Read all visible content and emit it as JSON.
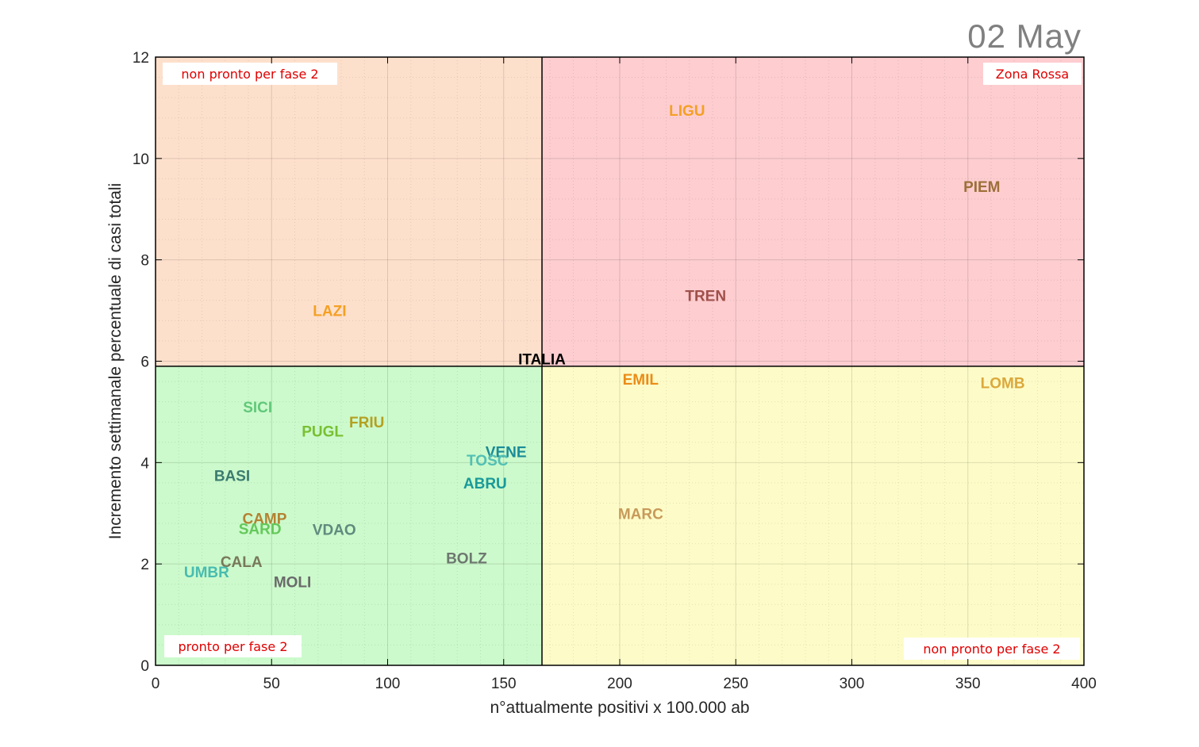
{
  "date_label": "02 May",
  "chart_data": {
    "type": "scatter",
    "xlabel": "n°attualmente positivi x 100.000 ab",
    "ylabel": "Incremento settimanale percentuale di casi totali",
    "xlim": [
      0,
      400
    ],
    "ylim": [
      0,
      12
    ],
    "xticks": [
      0,
      50,
      100,
      150,
      200,
      250,
      300,
      350,
      400
    ],
    "yticks": [
      0,
      2,
      4,
      6,
      8,
      10,
      12
    ],
    "grid": true,
    "thresholds": {
      "x": 166.5,
      "y": 5.9
    },
    "quadrants": [
      {
        "label": "non pronto per fase 2",
        "position": "top-left",
        "color": "#fde0cc"
      },
      {
        "label": "Zona Rossa",
        "position": "top-right",
        "color": "#fdcdd0"
      },
      {
        "label": "pronto per fase 2",
        "position": "bottom-left",
        "color": "#ccfacc"
      },
      {
        "label": "non pronto per fase 2",
        "position": "bottom-right",
        "color": "#fdfcc8"
      }
    ],
    "points": [
      {
        "label": "ITALIA",
        "x": 166.5,
        "y": 6.05,
        "color": "#000000"
      },
      {
        "label": "LIGU",
        "x": 229,
        "y": 10.95,
        "color": "#f5a024"
      },
      {
        "label": "PIEM",
        "x": 356,
        "y": 9.45,
        "color": "#9c7038"
      },
      {
        "label": "TREN",
        "x": 237,
        "y": 7.3,
        "color": "#a0504a"
      },
      {
        "label": "LAZI",
        "x": 75,
        "y": 7.0,
        "color": "#f5a024"
      },
      {
        "label": "EMIL",
        "x": 209,
        "y": 5.65,
        "color": "#ea8c18"
      },
      {
        "label": "LOMB",
        "x": 365,
        "y": 5.58,
        "color": "#dca83c"
      },
      {
        "label": "SICI",
        "x": 44,
        "y": 5.1,
        "color": "#62c87a"
      },
      {
        "label": "FRIU",
        "x": 91,
        "y": 4.8,
        "color": "#b4a020"
      },
      {
        "label": "PUGL",
        "x": 72,
        "y": 4.62,
        "color": "#78c032"
      },
      {
        "label": "VENE",
        "x": 151,
        "y": 4.22,
        "color": "#1a8c98"
      },
      {
        "label": "TOSC",
        "x": 143,
        "y": 4.05,
        "color": "#52c0b4"
      },
      {
        "label": "ABRU",
        "x": 142,
        "y": 3.6,
        "color": "#189a9a"
      },
      {
        "label": "BASI",
        "x": 33,
        "y": 3.75,
        "color": "#3c7c70"
      },
      {
        "label": "CAMP",
        "x": 47,
        "y": 2.9,
        "color": "#b48232"
      },
      {
        "label": "SARD",
        "x": 45,
        "y": 2.7,
        "color": "#64c85a"
      },
      {
        "label": "VDAO",
        "x": 77,
        "y": 2.68,
        "color": "#608a7e"
      },
      {
        "label": "BOLZ",
        "x": 134,
        "y": 2.12,
        "color": "#6e7870"
      },
      {
        "label": "MARC",
        "x": 209,
        "y": 3.0,
        "color": "#c89a5a"
      },
      {
        "label": "CALA",
        "x": 37,
        "y": 2.05,
        "color": "#78785a"
      },
      {
        "label": "UMBR",
        "x": 22,
        "y": 1.85,
        "color": "#48bcb0"
      },
      {
        "label": "MOLI",
        "x": 59,
        "y": 1.65,
        "color": "#6a6a6a"
      }
    ]
  }
}
